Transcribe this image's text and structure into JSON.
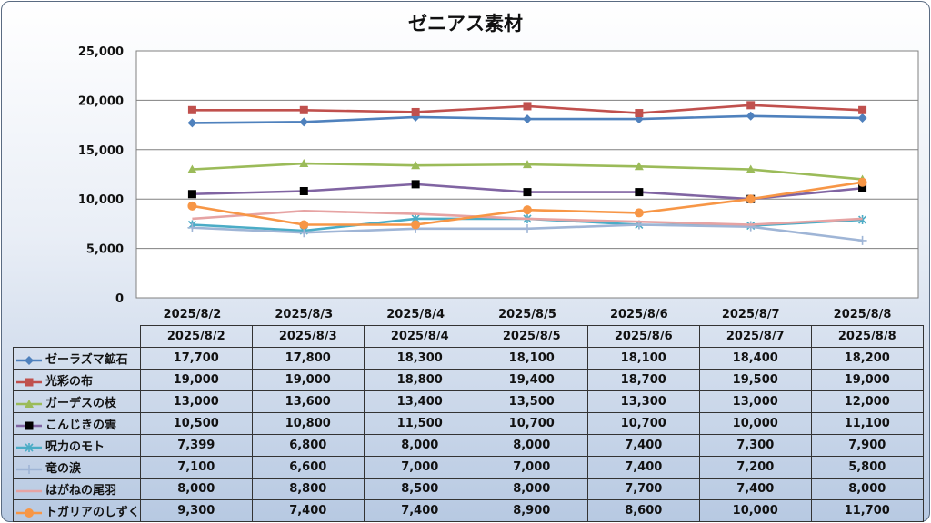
{
  "chart_data": {
    "type": "line",
    "title": "ゼニアス素材",
    "categories": [
      "2025/8/2",
      "2025/8/3",
      "2025/8/4",
      "2025/8/5",
      "2025/8/6",
      "2025/8/7",
      "2025/8/8"
    ],
    "ylim": [
      0,
      25000
    ],
    "yticks": [
      "0",
      "5,000",
      "10,000",
      "15,000",
      "20,000",
      "25,000"
    ],
    "grid": true,
    "legend": "data-table",
    "series": [
      {
        "name": "ゼーラズマ鉱石",
        "values": [
          17700,
          17800,
          18300,
          18100,
          18100,
          18400,
          18200
        ],
        "labels": [
          "17,700",
          "17,800",
          "18,300",
          "18,100",
          "18,100",
          "18,400",
          "18,200"
        ],
        "color": "#4f81bd",
        "marker": "diamond"
      },
      {
        "name": "光彩の布",
        "values": [
          19000,
          19000,
          18800,
          19400,
          18700,
          19500,
          19000
        ],
        "labels": [
          "19,000",
          "19,000",
          "18,800",
          "19,400",
          "18,700",
          "19,500",
          "19,000"
        ],
        "color": "#c0504d",
        "marker": "square"
      },
      {
        "name": "ガーデスの枝",
        "values": [
          13000,
          13600,
          13400,
          13500,
          13300,
          13000,
          12000
        ],
        "labels": [
          "13,000",
          "13,600",
          "13,400",
          "13,500",
          "13,300",
          "13,000",
          "12,000"
        ],
        "color": "#9bbb59",
        "marker": "triangle"
      },
      {
        "name": "こんじきの雲",
        "values": [
          10500,
          10800,
          11500,
          10700,
          10700,
          10000,
          11100
        ],
        "labels": [
          "10,500",
          "10,800",
          "11,500",
          "10,700",
          "10,700",
          "10,000",
          "11,100"
        ],
        "color": "#8064a2",
        "marker": "blacksquare"
      },
      {
        "name": "呪力のモト",
        "values": [
          7399,
          6800,
          8000,
          8000,
          7400,
          7300,
          7900
        ],
        "labels": [
          "7,399",
          "6,800",
          "8,000",
          "8,000",
          "7,400",
          "7,300",
          "7,900"
        ],
        "color": "#4bacc6",
        "marker": "star"
      },
      {
        "name": "竜の涙",
        "values": [
          7100,
          6600,
          7000,
          7000,
          7400,
          7200,
          5800
        ],
        "labels": [
          "7,100",
          "6,600",
          "7,000",
          "7,000",
          "7,400",
          "7,200",
          "5,800"
        ],
        "color": "#9fb5d6",
        "marker": "plus"
      },
      {
        "name": "はがねの尾羽",
        "values": [
          8000,
          8800,
          8500,
          8000,
          7700,
          7400,
          8000
        ],
        "labels": [
          "8,000",
          "8,800",
          "8,500",
          "8,000",
          "7,700",
          "7,400",
          "8,000"
        ],
        "color": "#e6a3a3",
        "marker": "none"
      },
      {
        "name": "トガリアのしずく",
        "values": [
          9300,
          7400,
          7400,
          8900,
          8600,
          10000,
          11700
        ],
        "labels": [
          "9,300",
          "7,400",
          "7,400",
          "8,900",
          "8,600",
          "10,000",
          "11,700"
        ],
        "color": "#f79646",
        "marker": "circle"
      }
    ]
  }
}
